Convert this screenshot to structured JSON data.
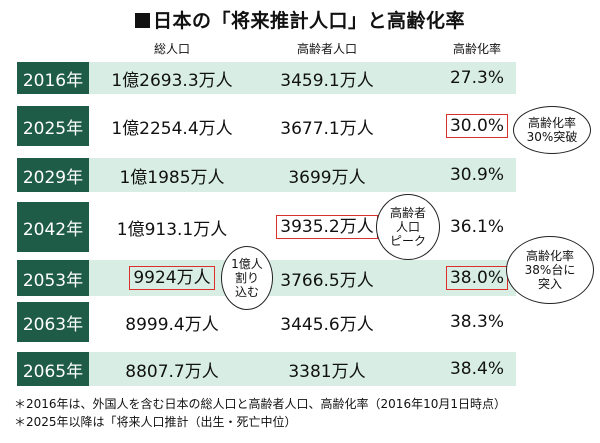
{
  "title": "日本の「将来推計人口」と高齢化率",
  "headers": {
    "total": "総人口",
    "elderly": "高齢者人口",
    "rate": "高齢化率"
  },
  "rows": [
    {
      "year": "2016年",
      "total": "1億2693.3万人",
      "elderly": "3459.1万人",
      "rate": "27.3%"
    },
    {
      "year": "2025年",
      "total": "1億2254.4万人",
      "elderly": "3677.1万人",
      "rate": "30.0%"
    },
    {
      "year": "2029年",
      "total": "1億1985万人",
      "elderly": "3699万人",
      "rate": "30.9%"
    },
    {
      "year": "2042年",
      "total": "1億913.1万人",
      "elderly": "3935.2万人",
      "rate": "36.1%"
    },
    {
      "year": "2053年",
      "total": "9924万人",
      "elderly": "3766.5万人",
      "rate": "38.0%"
    },
    {
      "year": "2063年",
      "total": "8999.4万人",
      "elderly": "3445.6万人",
      "rate": "38.3%"
    },
    {
      "year": "2065年",
      "total": "8807.7万人",
      "elderly": "3381万人",
      "rate": "38.4%"
    }
  ],
  "callouts": {
    "c2025": [
      "高齢化率",
      "30%突破"
    ],
    "c2042": [
      "高齢者",
      "人口",
      "ピーク"
    ],
    "c2053_total": [
      "1億人",
      "割り",
      "込む"
    ],
    "c2053_rate": [
      "高齢化率",
      "38%台に",
      "突入"
    ]
  },
  "notes": [
    "＊2016年は、外国人を含む日本の総人口と高齢者人口、高齢化率（2016年10月1日時点）",
    "＊2025年以降は「将来人口推計（出生・死亡中位）"
  ]
}
